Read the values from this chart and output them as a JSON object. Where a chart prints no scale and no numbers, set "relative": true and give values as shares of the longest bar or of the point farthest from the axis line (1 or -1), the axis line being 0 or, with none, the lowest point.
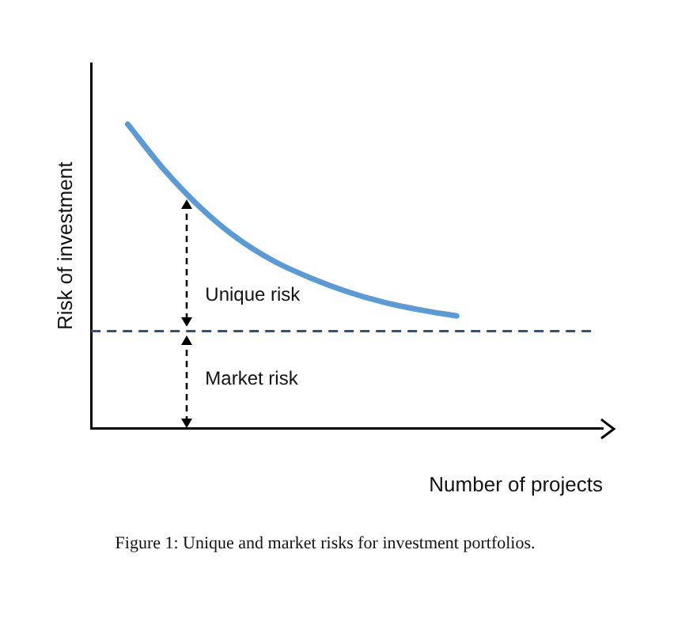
{
  "chart_data": {
    "type": "line",
    "relative": true,
    "title": "Figure 1: Unique and market risks for investment portfolios.",
    "xlabel": "Number of projects",
    "ylabel": "Risk of investment",
    "categories": [
      null,
      null,
      null,
      null,
      null,
      null,
      null,
      null,
      null,
      null,
      null,
      null,
      null,
      null,
      null
    ],
    "series": [
      {
        "color": "#5b9bd5",
        "values": [
          null,
          1,
          0.85,
          0.725,
          0.625,
          0.55,
          0.495,
          0.45,
          0.415,
          0.39,
          0.37,
          null,
          null,
          null,
          null
        ]
      }
    ],
    "ref_lines": [
      {
        "axis": "y",
        "value": 0.32,
        "color": "#2e5480",
        "line_style": "dashed"
      }
    ],
    "annotations": [
      "Unique risk",
      "Market risk"
    ],
    "grid": false,
    "legend": false,
    "marker": "none",
    "line_style": "solid"
  }
}
